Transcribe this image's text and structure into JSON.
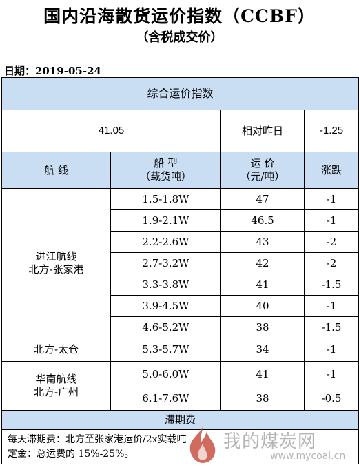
{
  "header": {
    "title": "国内沿海散货运价指数（CCBF）",
    "subtitle": "（含税成交价）",
    "date": "日期：2019-05-24"
  },
  "index": {
    "section_title": "综合运价指数",
    "value": "41.05",
    "compare_label": "相对昨日",
    "change": "-1.25"
  },
  "columns": {
    "route": "航 线",
    "ship_type": "船 型",
    "ship_type_unit": "（载货吨）",
    "price": "运 价",
    "price_unit": "（元/吨）",
    "change": "涨跌"
  },
  "groups": [
    {
      "route_line1": "进江航线",
      "route_line2": "北方-张家港",
      "rows": [
        {
          "ship": "1.5-1.8W",
          "price": "47",
          "change": "-1"
        },
        {
          "ship": "1.9-2.1W",
          "price": "46.5",
          "change": "-1"
        },
        {
          "ship": "2.2-2.6W",
          "price": "43",
          "change": "-2"
        },
        {
          "ship": "2.7-3.2W",
          "price": "42",
          "change": "-2"
        },
        {
          "ship": "3.3-3.8W",
          "price": "41",
          "change": "-1.5"
        },
        {
          "ship": "3.9-4.5W",
          "price": "40",
          "change": "-1"
        },
        {
          "ship": "4.6-5.2W",
          "price": "38",
          "change": "-1.5"
        }
      ]
    },
    {
      "route_line1": "北方-太仓",
      "route_line2": "",
      "rows": [
        {
          "ship": "5.3-5.7W",
          "price": "34",
          "change": "-1"
        }
      ]
    },
    {
      "route_line1": "华南航线",
      "route_line2": "北方-广州",
      "rows": [
        {
          "ship": "5.0-6.0W",
          "price": "41",
          "change": "-1"
        },
        {
          "ship": "6.1-7.6W",
          "price": "38",
          "change": "-0.5"
        }
      ]
    }
  ],
  "demurrage": {
    "title": "滞期费",
    "line1": "每天滞期费：北方至张家港运价/2x实载吨",
    "line2": "定金：总运费的 15%-25%。"
  },
  "watermark": {
    "text": "我的煤炭网",
    "url": "www.mycoal.cn",
    "logo_color": "#c0392b"
  }
}
